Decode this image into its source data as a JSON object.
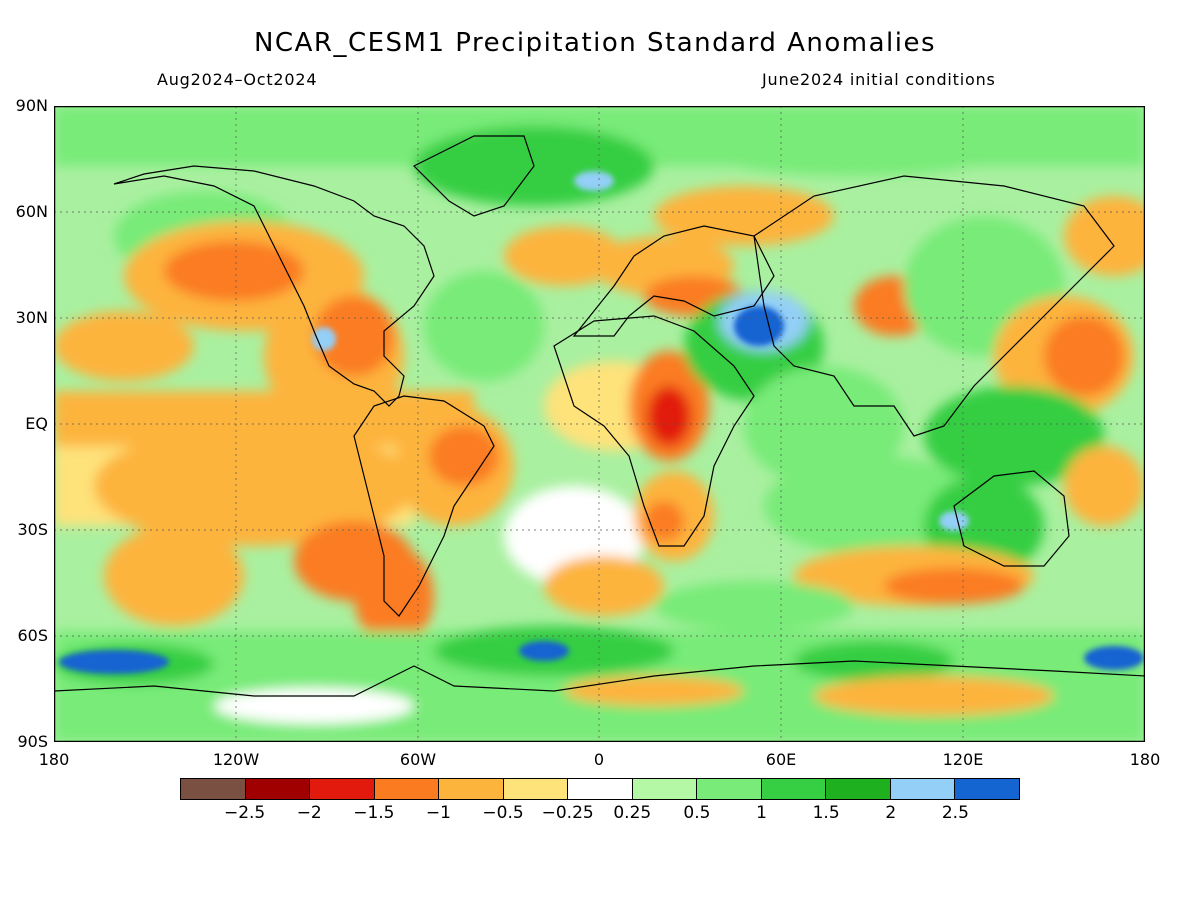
{
  "title": "NCAR_CESM1 Precipitation Standard Anomalies",
  "subtitle_left": "Aug2024–Oct2024",
  "subtitle_right": "June2024 initial conditions",
  "lat_labels": [
    "90N",
    "60N",
    "30N",
    "EQ",
    "30S",
    "60S",
    "90S"
  ],
  "lon_labels": [
    "180",
    "120W",
    "60W",
    "0",
    "60E",
    "120E",
    "180"
  ],
  "colorbar": {
    "colors": [
      "#7a5043",
      "#a10000",
      "#e21a0e",
      "#fb7b21",
      "#fdb43c",
      "#fee27a",
      "#ffffff",
      "#b4f7a5",
      "#78eb78",
      "#36ce42",
      "#1fb01f",
      "#93cff7",
      "#1464d2"
    ],
    "labels": [
      "−2.5",
      "−2",
      "−1.5",
      "−1",
      "−0.5",
      "−0.25",
      "0.25",
      "0.5",
      "1",
      "1.5",
      "2",
      "2.5"
    ]
  }
}
